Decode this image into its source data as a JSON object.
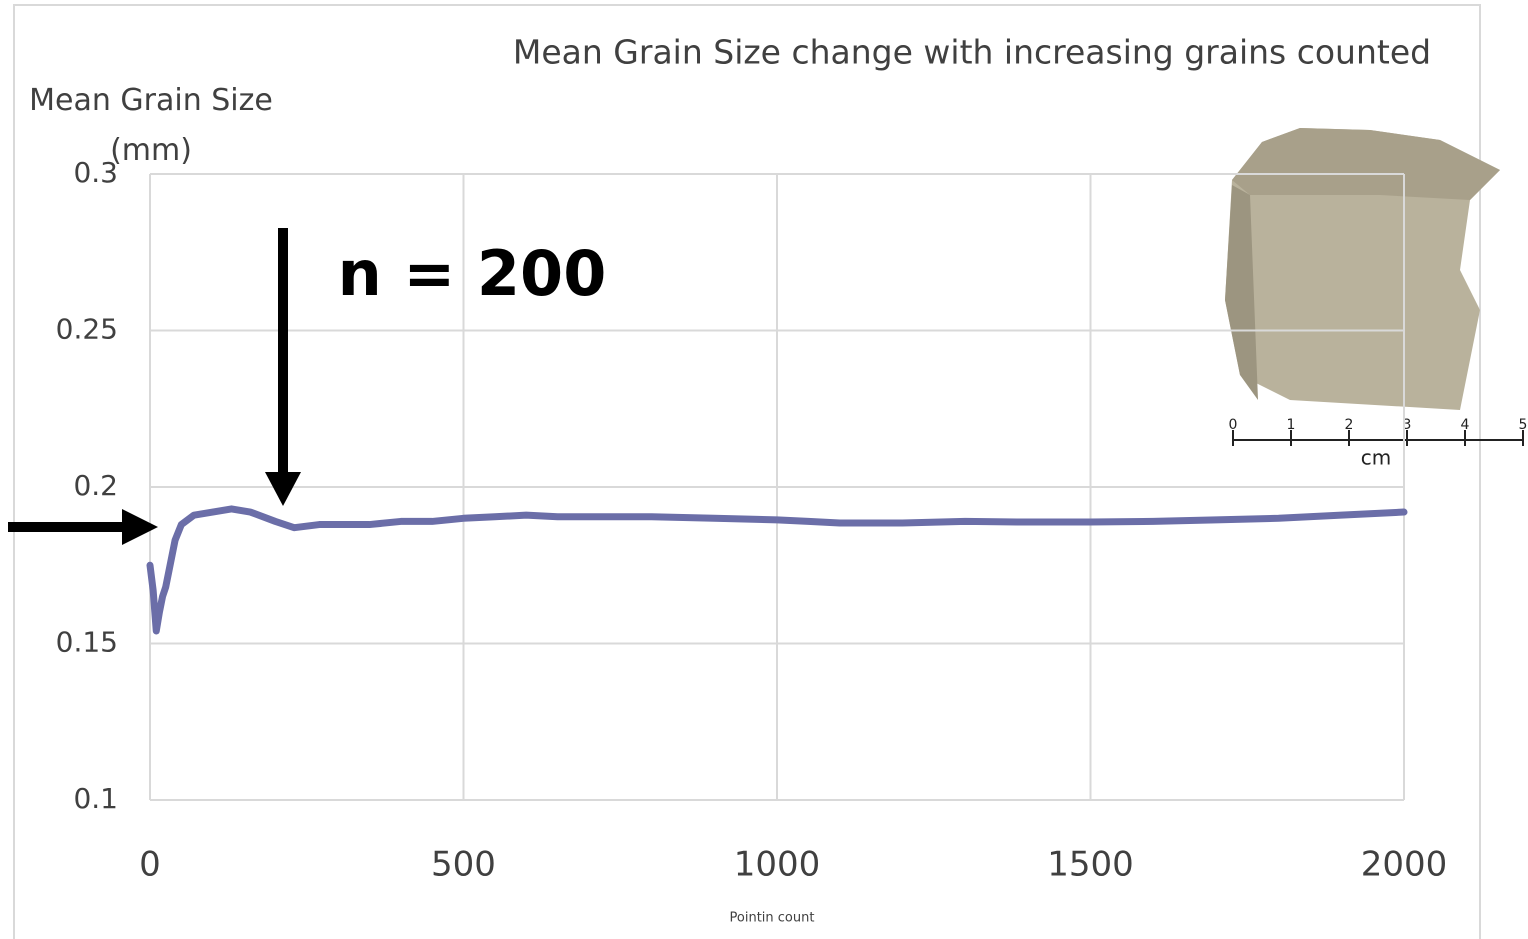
{
  "chart_data": {
    "type": "line",
    "title": "Mean Grain Size change with increasing grains counted",
    "y_label": "Mean Grain Size (mm)",
    "x_label": "Pointin count",
    "annotation": "n = 200",
    "x": [
      0,
      5,
      10,
      15,
      20,
      25,
      30,
      40,
      50,
      70,
      100,
      130,
      160,
      200,
      230,
      270,
      300,
      350,
      400,
      450,
      500,
      550,
      600,
      650,
      700,
      800,
      900,
      1000,
      1050,
      1100,
      1200,
      1300,
      1400,
      1500,
      1600,
      1700,
      1800,
      1900,
      2000
    ],
    "series": [
      {
        "name": "Mean Grain Size",
        "color": "#6b6ea8",
        "values": [
          0.175,
          0.167,
          0.154,
          0.16,
          0.165,
          0.168,
          0.173,
          0.183,
          0.188,
          0.191,
          0.192,
          0.193,
          0.192,
          0.189,
          0.187,
          0.188,
          0.188,
          0.188,
          0.189,
          0.189,
          0.19,
          0.1905,
          0.191,
          0.1905,
          0.1905,
          0.1905,
          0.19,
          0.1895,
          0.189,
          0.1885,
          0.1885,
          0.189,
          0.1888,
          0.1888,
          0.189,
          0.1895,
          0.19,
          0.191,
          0.192
        ]
      }
    ],
    "xlim": [
      0,
      2000
    ],
    "ylim": [
      0.1,
      0.3
    ],
    "xticks": [
      0,
      500,
      1000,
      1500,
      2000
    ],
    "yticks": [
      0.1,
      0.15,
      0.2,
      0.25,
      0.3
    ],
    "grid": true
  },
  "inset": {
    "scale_labels": [
      "0",
      "1",
      "2",
      "3",
      "4",
      "5"
    ],
    "unit": "cm"
  }
}
